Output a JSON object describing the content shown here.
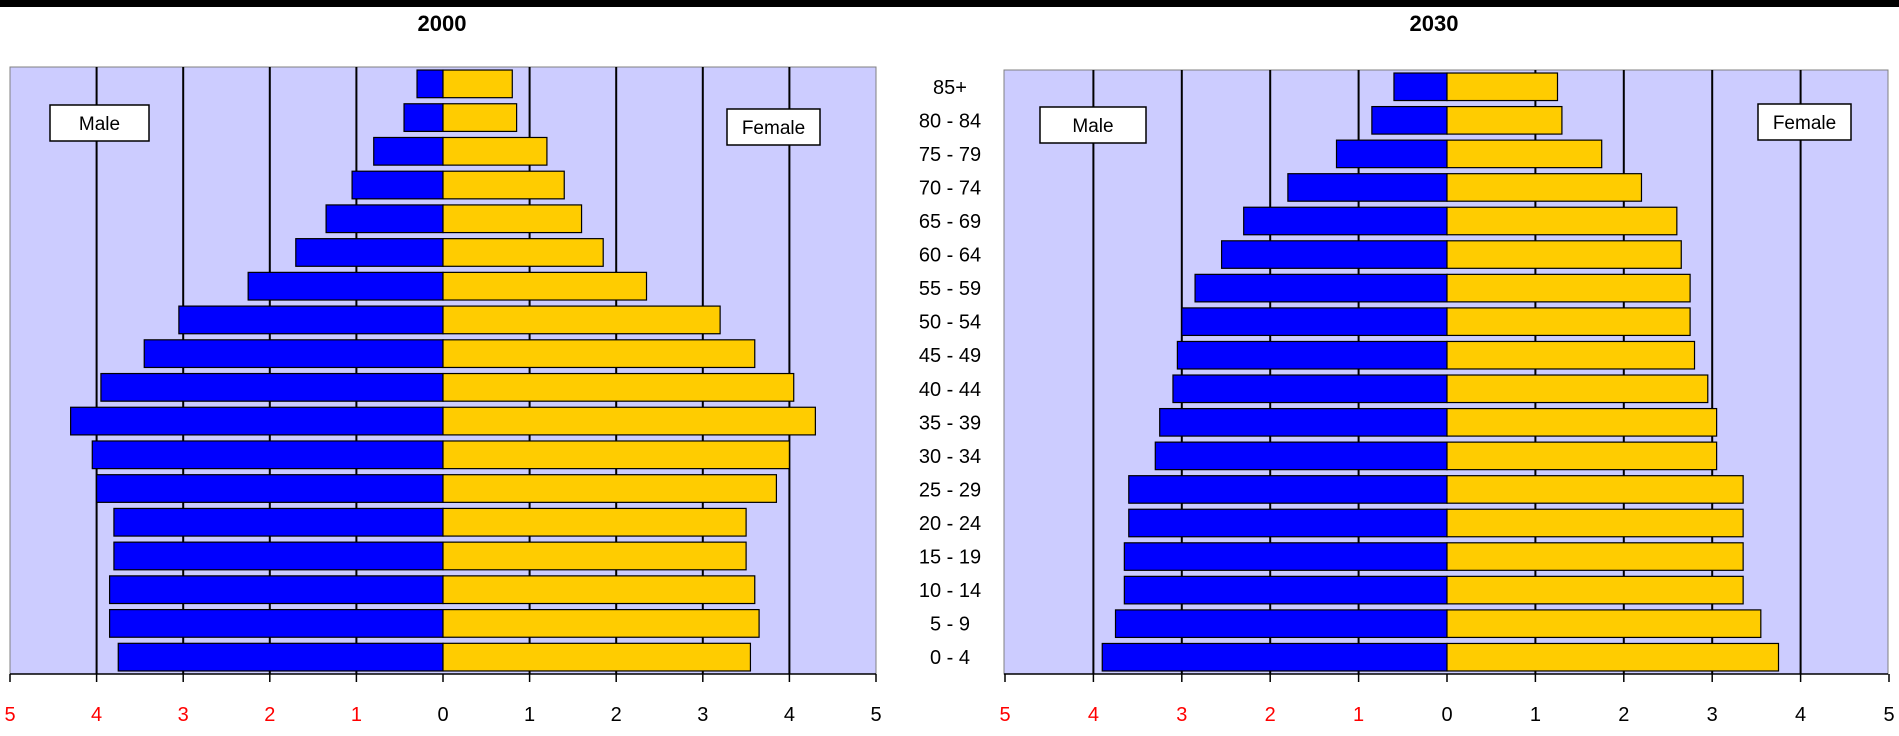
{
  "chart_data": [
    {
      "type": "bar",
      "orientation": "horizontal-pyramid",
      "title": "2000",
      "categories": [
        "0 - 4",
        "5 - 9",
        "10 - 14",
        "15 - 19",
        "20 - 24",
        "25 - 29",
        "30 - 34",
        "35 - 39",
        "40 - 44",
        "45 - 49",
        "50 - 54",
        "55 - 59",
        "60 - 64",
        "65 - 69",
        "70 - 74",
        "75 - 79",
        "80 - 84",
        "85+"
      ],
      "series": [
        {
          "name": "Male",
          "color": "#0000ff",
          "values": [
            3.75,
            3.85,
            3.85,
            3.8,
            3.8,
            4.0,
            4.05,
            4.3,
            3.95,
            3.45,
            3.05,
            2.25,
            1.7,
            1.35,
            1.05,
            0.8,
            0.45,
            0.3
          ]
        },
        {
          "name": "Female",
          "color": "#ffcc00",
          "values": [
            3.55,
            3.65,
            3.6,
            3.5,
            3.5,
            3.85,
            4.0,
            4.3,
            4.05,
            3.6,
            3.2,
            2.35,
            1.85,
            1.6,
            1.4,
            1.2,
            0.85,
            0.8
          ]
        }
      ],
      "xticks_left": [
        "5",
        "4",
        "3",
        "2",
        "1"
      ],
      "xticks_right": [
        "0",
        "1",
        "2",
        "3",
        "4",
        "5"
      ],
      "xlim": [
        -5,
        5
      ],
      "legend_left": "Male",
      "legend_right": "Female"
    },
    {
      "type": "bar",
      "orientation": "horizontal-pyramid",
      "title": "2030",
      "categories": [
        "0 - 4",
        "5 - 9",
        "10 - 14",
        "15 - 19",
        "20 - 24",
        "25 - 29",
        "30 - 34",
        "35 - 39",
        "40 - 44",
        "45 - 49",
        "50 - 54",
        "55 - 59",
        "60 - 64",
        "65 - 69",
        "70 - 74",
        "75 - 79",
        "80 - 84",
        "85+"
      ],
      "series": [
        {
          "name": "Male",
          "color": "#0000ff",
          "values": [
            3.9,
            3.75,
            3.65,
            3.65,
            3.6,
            3.6,
            3.3,
            3.25,
            3.1,
            3.05,
            3.0,
            2.85,
            2.55,
            2.3,
            1.8,
            1.25,
            0.85,
            0.6
          ]
        },
        {
          "name": "Female",
          "color": "#ffcc00",
          "values": [
            3.75,
            3.55,
            3.35,
            3.35,
            3.35,
            3.35,
            3.05,
            3.05,
            2.95,
            2.8,
            2.75,
            2.75,
            2.65,
            2.6,
            2.2,
            1.75,
            1.3,
            1.25
          ]
        }
      ],
      "xticks_left": [
        "5",
        "4",
        "3",
        "2",
        "1"
      ],
      "xticks_right": [
        "0",
        "1",
        "2",
        "3",
        "4",
        "5"
      ],
      "xlim": [
        -5,
        5
      ],
      "legend_left": "Male",
      "legend_right": "Female"
    }
  ],
  "colors": {
    "plot_background": "#ccccff",
    "male": "#0000ff",
    "female": "#ffcc00",
    "left_tick": "#ff0000",
    "right_tick": "#000000"
  }
}
